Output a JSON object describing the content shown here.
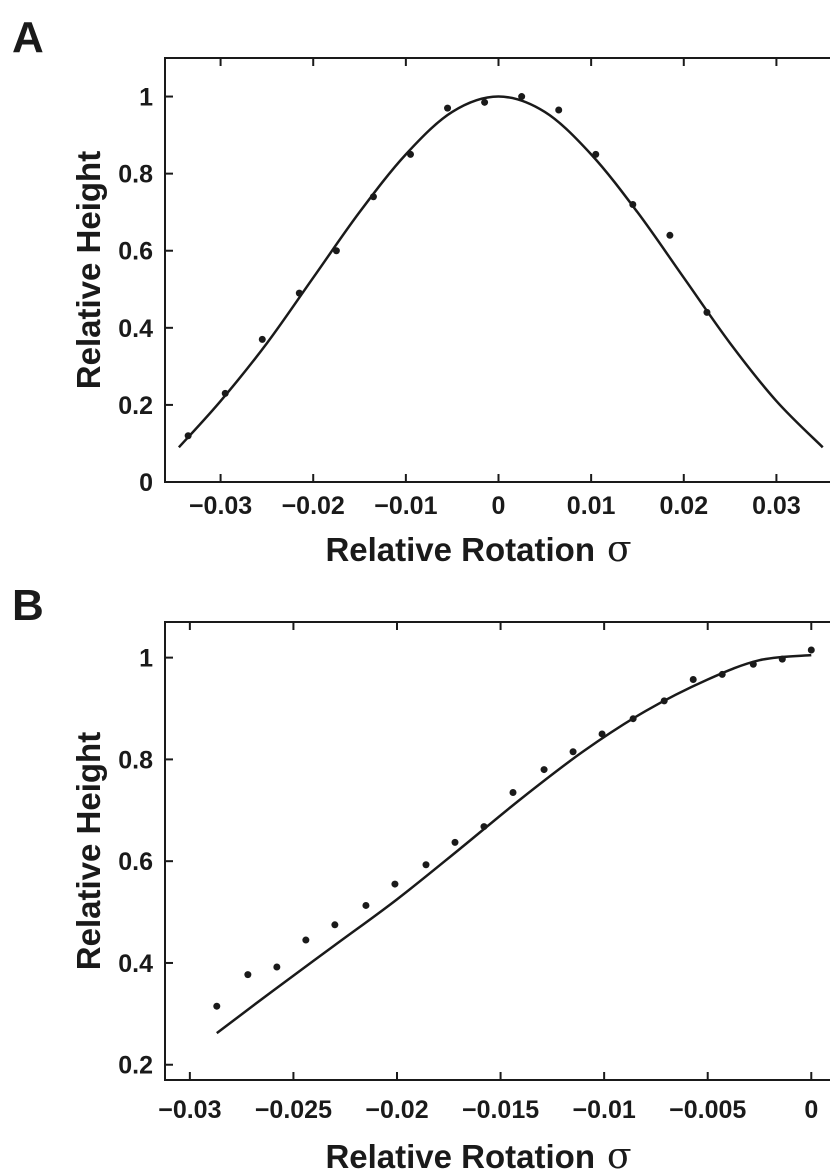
{
  "chart_data": [
    {
      "panel_label": "A",
      "type": "scatter",
      "xlabel": "Relative Rotation",
      "xlabel_symbol": "σ",
      "ylabel": "Relative Height",
      "xlim": [
        -0.036,
        0.036
      ],
      "ylim": [
        0,
        1.1
      ],
      "xticks": [
        -0.03,
        -0.02,
        -0.01,
        0,
        0.01,
        0.02,
        0.03
      ],
      "xtick_labels": [
        "−0.03",
        "−0.02",
        "−0.01",
        "0",
        "0.01",
        "0.02",
        "0.03"
      ],
      "yticks": [
        0,
        0.2,
        0.4,
        0.6,
        0.8,
        1
      ],
      "ytick_labels": [
        "0",
        "0.2",
        "0.4",
        "0.6",
        "0.8",
        "1"
      ],
      "grid": false,
      "series": [
        {
          "kind": "points",
          "x": [
            -0.0335,
            -0.0295,
            -0.0255,
            -0.0215,
            -0.0175,
            -0.0135,
            -0.0095,
            -0.0055,
            -0.0015,
            0.0025,
            0.0065,
            0.0105,
            0.0145,
            0.0185,
            0.0225
          ],
          "y": [
            0.12,
            0.23,
            0.37,
            0.49,
            0.6,
            0.74,
            0.85,
            0.97,
            0.985,
            1.0,
            0.965,
            0.85,
            0.72,
            0.64,
            0.44
          ]
        },
        {
          "kind": "line",
          "x": [
            -0.0345,
            -0.03,
            -0.025,
            -0.02,
            -0.015,
            -0.01,
            -0.005,
            0,
            0.005,
            0.01,
            0.015,
            0.02,
            0.025,
            0.03,
            0.035
          ],
          "y": [
            0.09,
            0.21,
            0.36,
            0.53,
            0.7,
            0.85,
            0.96,
            1.0,
            0.96,
            0.85,
            0.7,
            0.53,
            0.36,
            0.21,
            0.09
          ]
        }
      ]
    },
    {
      "panel_label": "B",
      "type": "scatter",
      "xlabel": "Relative Rotation",
      "xlabel_symbol": "σ",
      "ylabel": "Relative Height",
      "xlim": [
        -0.0312,
        0.001
      ],
      "ylim": [
        0.17,
        1.07
      ],
      "xticks": [
        -0.03,
        -0.025,
        -0.02,
        -0.015,
        -0.01,
        -0.005,
        0
      ],
      "xtick_labels": [
        "−0.03",
        "−0.025",
        "−0.02",
        "−0.015",
        "−0.01",
        "−0.005",
        "0"
      ],
      "yticks": [
        0.2,
        0.4,
        0.6,
        0.8,
        1
      ],
      "ytick_labels": [
        "0.2",
        "0.4",
        "0.6",
        "0.8",
        "1"
      ],
      "grid": false,
      "series": [
        {
          "kind": "points",
          "x": [
            -0.0287,
            -0.0272,
            -0.0258,
            -0.0244,
            -0.023,
            -0.0215,
            -0.0201,
            -0.0186,
            -0.0172,
            -0.0158,
            -0.0144,
            -0.0129,
            -0.0115,
            -0.0101,
            -0.0086,
            -0.0071,
            -0.0057,
            -0.0043,
            -0.0028,
            -0.0014,
            0
          ],
          "y": [
            0.315,
            0.377,
            0.392,
            0.445,
            0.475,
            0.513,
            0.555,
            0.593,
            0.637,
            0.668,
            0.735,
            0.78,
            0.815,
            0.85,
            0.88,
            0.915,
            0.957,
            0.967,
            0.987,
            0.997,
            1.015
          ]
        },
        {
          "kind": "line",
          "x": [
            -0.0287,
            -0.026,
            -0.023,
            -0.02,
            -0.017,
            -0.014,
            -0.011,
            -0.008,
            -0.005,
            -0.0025,
            0
          ],
          "y": [
            0.262,
            0.345,
            0.435,
            0.525,
            0.623,
            0.723,
            0.816,
            0.895,
            0.957,
            0.995,
            1.005
          ]
        }
      ]
    }
  ]
}
